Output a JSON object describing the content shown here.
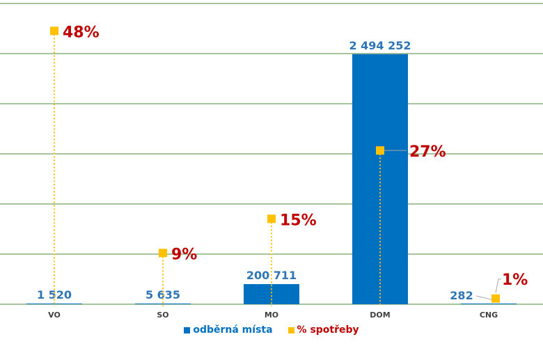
{
  "chart_data": {
    "type": "bar",
    "categories": [
      "VO",
      "SO",
      "MO",
      "DOM",
      "CNG"
    ],
    "series": [
      {
        "name": "odběrná místa",
        "type": "bar",
        "values": [
          1520,
          5635,
          200711,
          2494252,
          282
        ],
        "labels": [
          "1 520",
          "5 635",
          "200 711",
          "2 494 252",
          "282"
        ],
        "color": "#0070c0",
        "label_color": "#2e75b6"
      },
      {
        "name": "% spotřeby",
        "type": "point",
        "values": [
          48,
          9,
          15,
          27,
          1
        ],
        "labels": [
          "48%",
          "9%",
          "15%",
          "27%",
          "1%"
        ],
        "color": "#ffc000",
        "label_color": "#c00000"
      }
    ],
    "ylim": [
      0,
      3000000
    ],
    "grid": true,
    "grid_color": "#4e8a3e",
    "legend_position": "bottom"
  }
}
